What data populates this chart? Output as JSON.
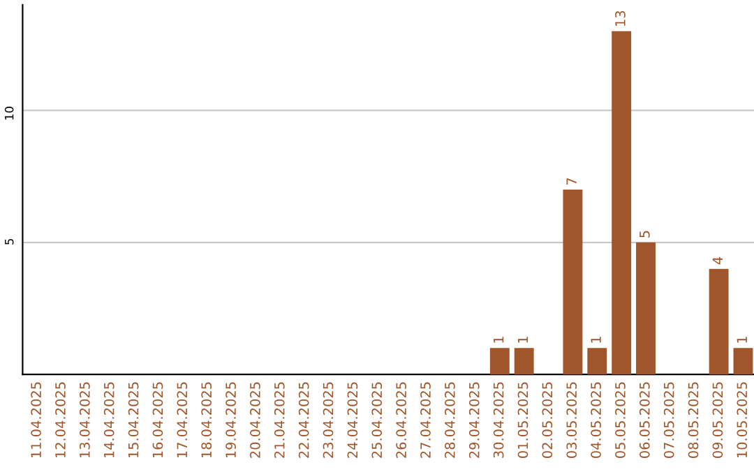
{
  "chart_data": {
    "type": "bar",
    "categories": [
      "11.04.2025",
      "12.04.2025",
      "13.04.2025",
      "14.04.2025",
      "15.04.2025",
      "16.04.2025",
      "17.04.2025",
      "18.04.2025",
      "19.04.2025",
      "20.04.2025",
      "21.04.2025",
      "22.04.2025",
      "23.04.2025",
      "24.04.2025",
      "25.04.2025",
      "26.04.2025",
      "27.04.2025",
      "28.04.2025",
      "29.04.2025",
      "30.04.2025",
      "01.05.2025",
      "02.05.2025",
      "03.05.2025",
      "04.05.2025",
      "05.05.2025",
      "06.05.2025",
      "07.05.2025",
      "08.05.2025",
      "09.05.2025",
      "10.05.2025"
    ],
    "values": [
      0,
      0,
      0,
      0,
      0,
      0,
      0,
      0,
      0,
      0,
      0,
      0,
      0,
      0,
      0,
      0,
      0,
      0,
      0,
      1,
      1,
      0,
      7,
      1,
      13,
      5,
      0,
      0,
      4,
      1
    ],
    "value_labels": [
      null,
      null,
      null,
      null,
      null,
      null,
      null,
      null,
      null,
      null,
      null,
      null,
      null,
      null,
      null,
      null,
      null,
      null,
      null,
      "1",
      "1",
      null,
      "7",
      "1",
      "13",
      "5",
      null,
      null,
      "4",
      "1"
    ],
    "color": "#a0562a",
    "ylim": [
      0,
      14
    ],
    "yticks": [
      5,
      10
    ],
    "grid": "y",
    "legend": false
  }
}
